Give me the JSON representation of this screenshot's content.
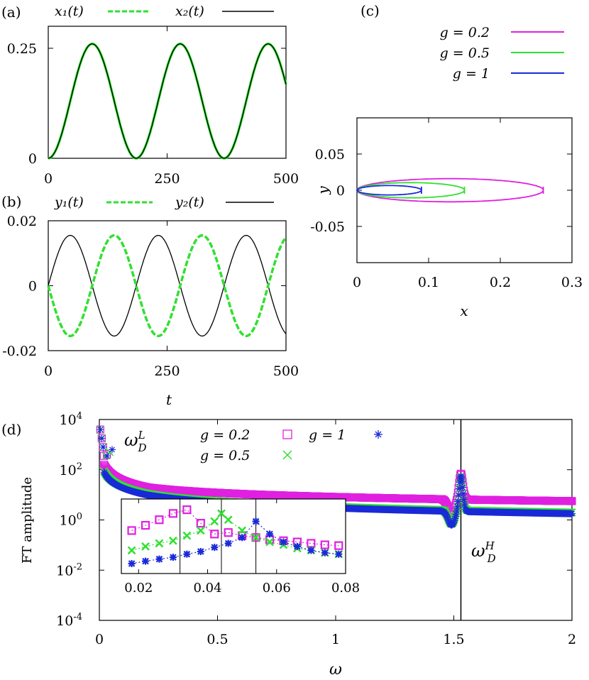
{
  "colors": {
    "magenta": "#e020e0",
    "green": "#30e030",
    "blue": "#1a2ad8",
    "black": "#000000"
  },
  "panels": {
    "a": {
      "label": "(a)"
    },
    "b": {
      "label": "(b)",
      "xlabel": "t"
    },
    "c": {
      "label": "(c)",
      "xlabel": "x",
      "ylabel": "y"
    },
    "d": {
      "label": "(d)",
      "xlabel": "ω",
      "ylabel": "FT amplitude"
    }
  },
  "chart_data": [
    {
      "id": "a",
      "type": "line",
      "xlim": [
        0,
        500
      ],
      "ylim": [
        0,
        0.3
      ],
      "xticks": [
        "0",
        "250",
        "500"
      ],
      "yticks": [
        "0",
        "0.25"
      ],
      "series": [
        {
          "name": "x₁(t)",
          "style": "dashed",
          "color": "#30e030",
          "amplitude": 0.26,
          "period": 185,
          "form": "0.13*(1-cos(2*pi*t/185))"
        },
        {
          "name": "x₂(t)",
          "style": "solid",
          "color": "#000000",
          "amplitude": 0.26,
          "period": 185,
          "form": "0.13*(1-cos(2*pi*t/185))"
        }
      ]
    },
    {
      "id": "b",
      "type": "line",
      "xlim": [
        0,
        500
      ],
      "ylim": [
        -0.02,
        0.02
      ],
      "xticks": [
        "0",
        "250",
        "500"
      ],
      "yticks": [
        "-0.02",
        "0",
        "0.02"
      ],
      "series": [
        {
          "name": "y₁(t)",
          "style": "dashed",
          "color": "#30e030",
          "amplitude": -0.0155,
          "period": 185,
          "form": "-0.0155*sin(2*pi*t/185)"
        },
        {
          "name": "y₂(t)",
          "style": "solid",
          "color": "#000000",
          "amplitude": 0.0155,
          "period": 185,
          "form": "0.0155*sin(2*pi*t/185)"
        }
      ]
    },
    {
      "id": "c",
      "type": "line",
      "xlim": [
        0,
        0.3
      ],
      "ylim": [
        -0.1,
        0.1
      ],
      "xticks": [
        "0",
        "0.1",
        "0.2",
        "0.3"
      ],
      "yticks": [
        "0.05",
        "0",
        "-0.05"
      ],
      "series": [
        {
          "name": "g = 0.2",
          "color": "#e020e0",
          "x_range": [
            0,
            0.26
          ],
          "y_amplitude": 0.016
        },
        {
          "name": "g = 0.5",
          "color": "#30e030",
          "x_range": [
            0,
            0.15
          ],
          "y_amplitude": 0.0105
        },
        {
          "name": "g = 1",
          "color": "#1a2ad8",
          "x_range": [
            0,
            0.09
          ],
          "y_amplitude": 0.0065
        }
      ]
    },
    {
      "id": "d",
      "type": "scatter",
      "xlim": [
        0,
        2
      ],
      "ylim_log10": [
        -4,
        4
      ],
      "log_y": true,
      "xticks": [
        "0",
        "0.5",
        "1",
        "1.5",
        "2"
      ],
      "yticks": [
        {
          "base": "10",
          "exp": "4"
        },
        {
          "base": "10",
          "exp": "2"
        },
        {
          "base": "10",
          "exp": "0"
        },
        {
          "base": "10",
          "exp": "-2"
        },
        {
          "base": "10",
          "exp": "-4"
        }
      ],
      "vertical_line_x": 1.53,
      "annotations": {
        "omega_L": "ω",
        "omega_L_sup": "L",
        "omega_L_sub": "D",
        "omega_H": "ω",
        "omega_H_sup": "H",
        "omega_H_sub": "D"
      },
      "series": [
        {
          "name": "g = 0.2",
          "marker": "square",
          "color": "#e020e0",
          "low_peak_x": 0.032,
          "tail_log10_at_0_2": 1.3,
          "tail_log10_at_2": 0.75,
          "high_peak_log10": 1.85
        },
        {
          "name": "g = 0.5",
          "marker": "x",
          "color": "#30e030",
          "low_peak_x": 0.044,
          "tail_log10_at_0_2": 1.05,
          "tail_log10_at_2": 0.3,
          "high_peak_log10": 1.7
        },
        {
          "name": "g = 1",
          "marker": "asterisk",
          "color": "#1a2ad8",
          "low_peak_x": 0.054,
          "tail_log10_at_0_2": 1.0,
          "tail_log10_at_2": 0.25,
          "high_peak_log10": 1.75
        }
      ],
      "inset": {
        "xlim": [
          0.015,
          0.08
        ],
        "xticks": [
          "0.02",
          "0.04",
          "0.06",
          "0.08"
        ],
        "vertical_lines_x": [
          0.032,
          0.044,
          0.054
        ],
        "series": [
          {
            "name": "g = 0.2",
            "points": [
              [
                0.018,
                0.25
              ],
              [
                0.022,
                0.35
              ],
              [
                0.026,
                0.5
              ],
              [
                0.03,
                0.75
              ],
              [
                0.034,
                0.95
              ],
              [
                0.038,
                0.4
              ],
              [
                0.042,
                0.2
              ],
              [
                0.046,
                0.22
              ],
              [
                0.05,
                0.18
              ],
              [
                0.054,
                0.16
              ],
              [
                0.058,
                0.14
              ],
              [
                0.062,
                0.13
              ],
              [
                0.066,
                0.12
              ],
              [
                0.07,
                0.11
              ],
              [
                0.074,
                0.1
              ],
              [
                0.078,
                0.095
              ]
            ]
          },
          {
            "name": "g = 0.5",
            "points": [
              [
                0.018,
                0.07
              ],
              [
                0.022,
                0.09
              ],
              [
                0.026,
                0.11
              ],
              [
                0.03,
                0.13
              ],
              [
                0.034,
                0.18
              ],
              [
                0.038,
                0.25
              ],
              [
                0.042,
                0.45
              ],
              [
                0.044,
                0.75
              ],
              [
                0.046,
                0.5
              ],
              [
                0.05,
                0.25
              ],
              [
                0.054,
                0.16
              ],
              [
                0.058,
                0.12
              ],
              [
                0.062,
                0.1
              ],
              [
                0.066,
                0.08
              ],
              [
                0.07,
                0.07
              ],
              [
                0.074,
                0.06
              ],
              [
                0.078,
                0.055
              ]
            ]
          },
          {
            "name": "g = 1",
            "points": [
              [
                0.018,
                0.03
              ],
              [
                0.022,
                0.035
              ],
              [
                0.026,
                0.04
              ],
              [
                0.03,
                0.045
              ],
              [
                0.034,
                0.055
              ],
              [
                0.038,
                0.065
              ],
              [
                0.042,
                0.085
              ],
              [
                0.046,
                0.11
              ],
              [
                0.05,
                0.16
              ],
              [
                0.054,
                0.45
              ],
              [
                0.058,
                0.2
              ],
              [
                0.062,
                0.12
              ],
              [
                0.066,
                0.09
              ],
              [
                0.07,
                0.07
              ],
              [
                0.074,
                0.06
              ],
              [
                0.078,
                0.055
              ]
            ]
          }
        ]
      }
    }
  ]
}
